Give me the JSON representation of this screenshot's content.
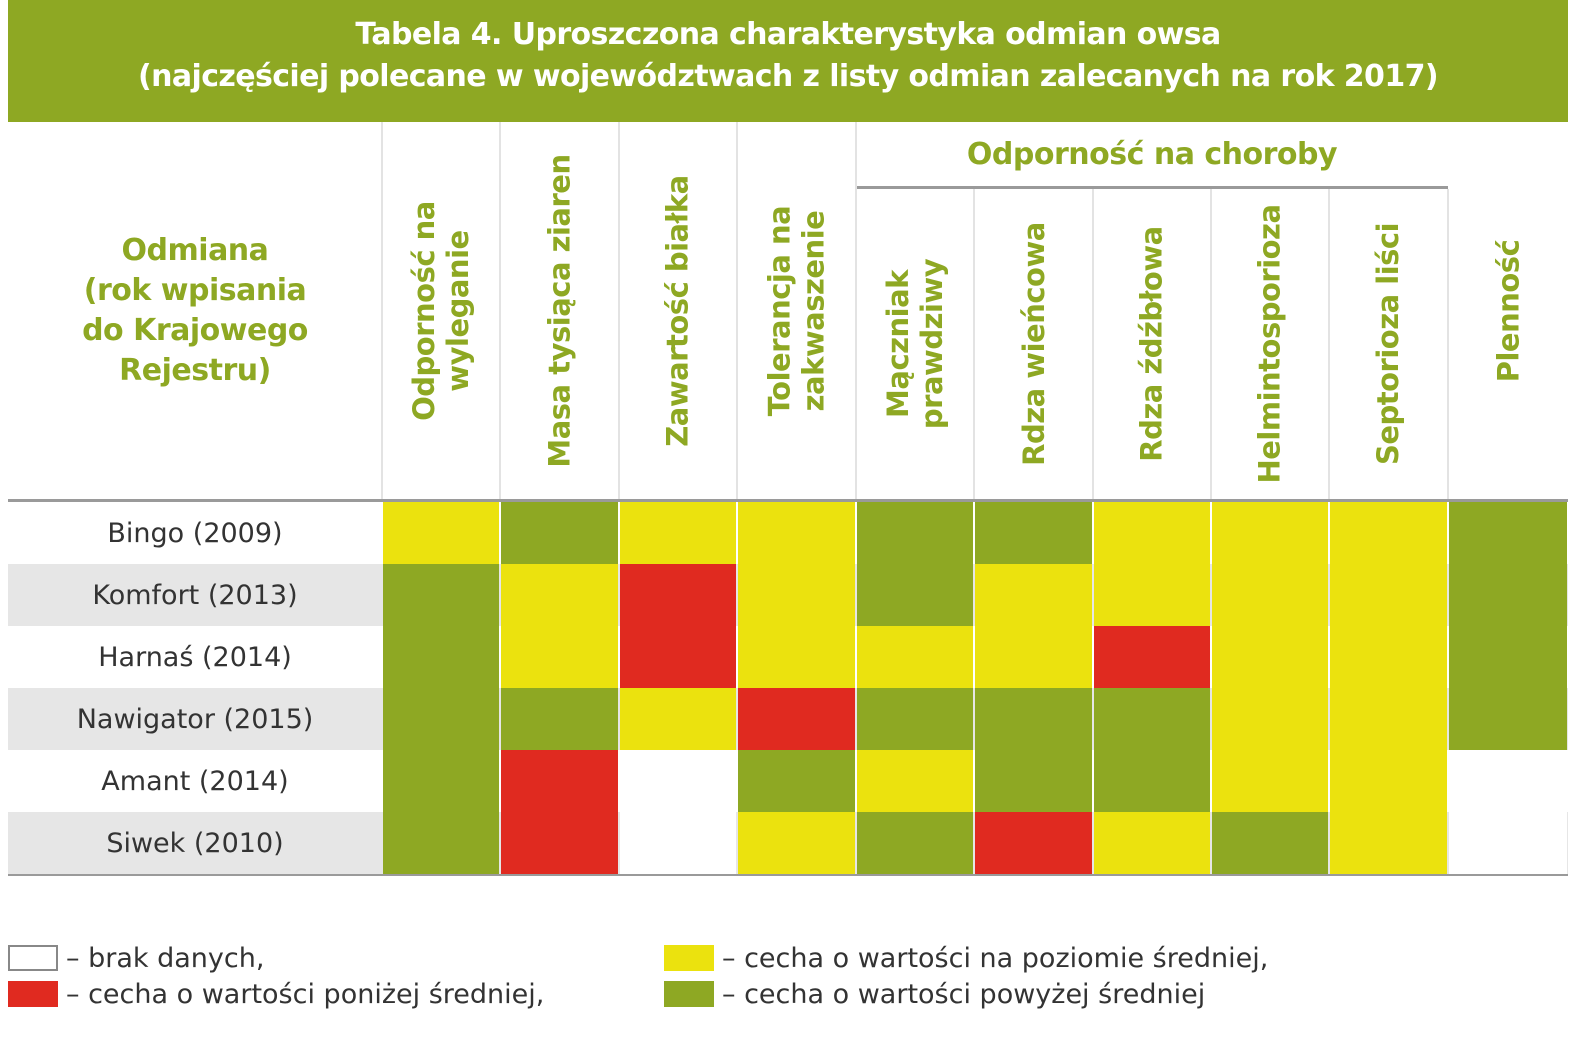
{
  "title": {
    "line1": "Tabela 4. Uproszczona charakterystyka odmian owsa",
    "line2": "(najczęściej polecane w województwach z listy odmian zalecanych na rok 2017)"
  },
  "header": {
    "odmiana_lines": [
      "Odmiana",
      "(rok wpisania",
      "do Krajowego",
      "Rejestru)"
    ],
    "group_label": "Odporność na choroby",
    "columns": [
      {
        "lines": [
          "Odporność na",
          "wyleganie"
        ]
      },
      {
        "lines": [
          "Masa tysiąca ziaren"
        ]
      },
      {
        "lines": [
          "Zawartość białka"
        ]
      },
      {
        "lines": [
          "Tolerancja na",
          "zakwaszenie"
        ]
      },
      {
        "lines": [
          "Mączniak",
          "prawdziwy"
        ]
      },
      {
        "lines": [
          "Rdza wieńcowa"
        ]
      },
      {
        "lines": [
          "Rdza źdźbłowa"
        ]
      },
      {
        "lines": [
          "Helmintosporioza"
        ]
      },
      {
        "lines": [
          "Septorioza liści"
        ]
      },
      {
        "lines": [
          "Plenność"
        ]
      }
    ]
  },
  "colors": {
    "G": "#8ea823",
    "Y": "#ebe20e",
    "R": "#e02a20",
    "W": "#ffffff",
    "accent": "#8ea823"
  },
  "rows": [
    {
      "label": "Bingo (2009)",
      "cells": [
        "Y",
        "G",
        "Y",
        "Y",
        "G",
        "G",
        "Y",
        "Y",
        "Y",
        "G"
      ]
    },
    {
      "label": "Komfort (2013)",
      "cells": [
        "G",
        "Y",
        "R",
        "Y",
        "G",
        "Y",
        "Y",
        "Y",
        "Y",
        "G"
      ]
    },
    {
      "label": "Harnaś (2014)",
      "cells": [
        "G",
        "Y",
        "R",
        "Y",
        "Y",
        "Y",
        "R",
        "Y",
        "Y",
        "G"
      ]
    },
    {
      "label": "Nawigator (2015)",
      "cells": [
        "G",
        "G",
        "Y",
        "R",
        "G",
        "G",
        "G",
        "Y",
        "Y",
        "G"
      ]
    },
    {
      "label": "Amant (2014)",
      "cells": [
        "G",
        "R",
        "W",
        "G",
        "Y",
        "G",
        "G",
        "Y",
        "Y",
        "W"
      ]
    },
    {
      "label": "Siwek (2010)",
      "cells": [
        "G",
        "R",
        "W",
        "Y",
        "G",
        "R",
        "Y",
        "G",
        "Y",
        "W"
      ]
    }
  ],
  "legend": [
    {
      "swatch": "W",
      "text": "– brak danych,"
    },
    {
      "swatch": "R",
      "text": "– cecha o wartości poniżej średniej,"
    },
    {
      "swatch": "Y",
      "text": "– cecha o wartości na poziomie średniej,"
    },
    {
      "swatch": "G",
      "text": "– cecha o wartości powyżej średniej"
    }
  ]
}
